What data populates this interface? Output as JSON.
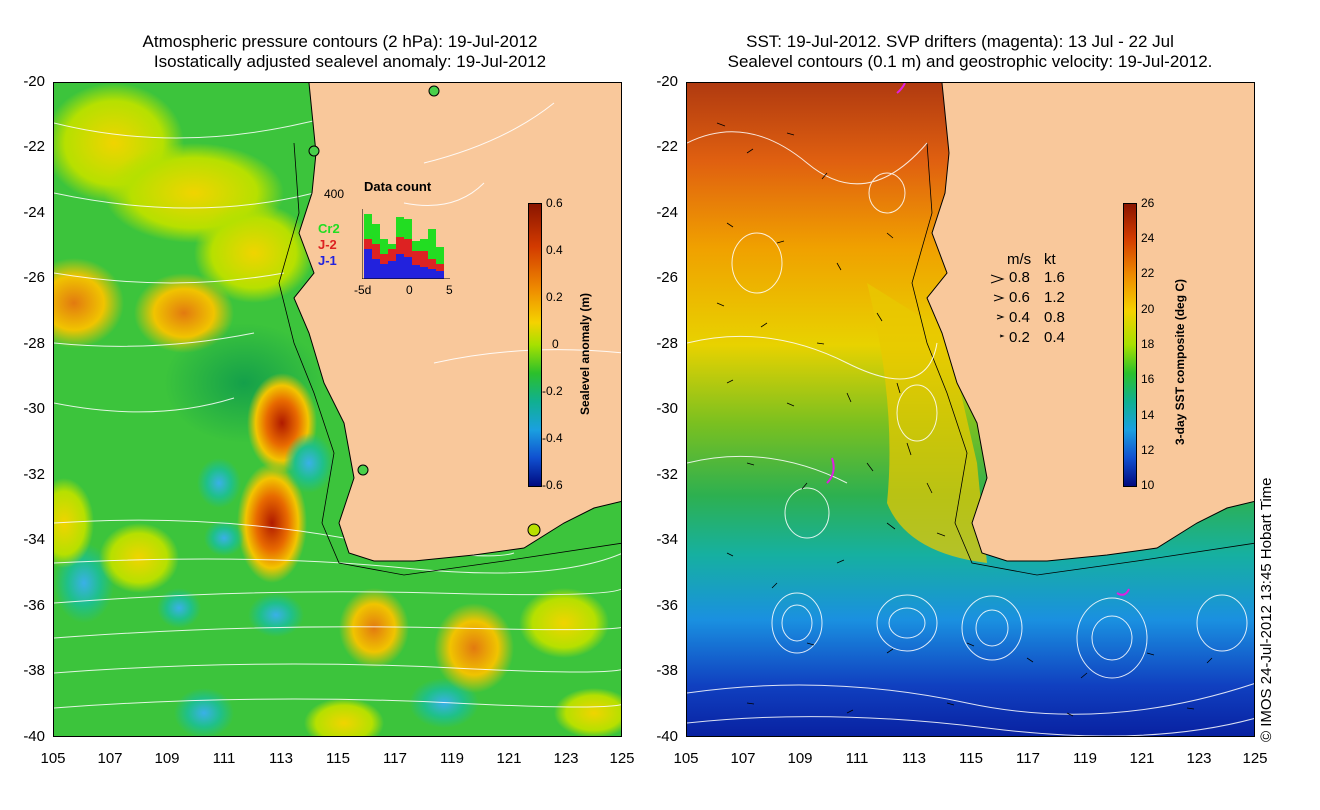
{
  "left_panel": {
    "title_line1": "Atmospheric pressure contours (2 hPa): 19-Jul-2012",
    "title_line2": "Isostatically adjusted sealevel anomaly: 19-Jul-2012",
    "lat_ticks": [
      "-20",
      "-22",
      "-24",
      "-26",
      "-28",
      "-30",
      "-32",
      "-34",
      "-36",
      "-38",
      "-40"
    ],
    "lon_ticks": [
      "105",
      "107",
      "109",
      "111",
      "113",
      "115",
      "117",
      "119",
      "121",
      "123",
      "125"
    ],
    "colorbar": {
      "title": "Sealevel anomaly (m)",
      "ticks": [
        "0.6",
        "0.4",
        "0.2",
        "0",
        "-0.2",
        "-0.4",
        "-0.6"
      ]
    },
    "inset": {
      "title": "Data count",
      "ymax_label": "400",
      "x_labels": [
        "-5d",
        "0",
        "5"
      ],
      "legend": [
        {
          "label": "Cr2",
          "color": "#22dd22"
        },
        {
          "label": "J-2",
          "color": "#dd2222"
        },
        {
          "label": "J-1",
          "color": "#2222dd"
        }
      ]
    }
  },
  "right_panel": {
    "title_line1": "SST: 19-Jul-2012. SVP drifters (magenta): 13 Jul - 22 Jul",
    "title_line2": "Sealevel contours (0.1 m) and geostrophic velocity: 19-Jul-2012.",
    "lat_ticks": [
      "-20",
      "-22",
      "-24",
      "-26",
      "-28",
      "-30",
      "-32",
      "-34",
      "-36",
      "-38",
      "-40"
    ],
    "lon_ticks": [
      "105",
      "107",
      "109",
      "111",
      "113",
      "115",
      "117",
      "119",
      "121",
      "123",
      "125"
    ],
    "colorbar": {
      "title": "3-day SST composite (deg C)",
      "ticks": [
        "26",
        "24",
        "22",
        "20",
        "18",
        "16",
        "14",
        "12",
        "10"
      ]
    },
    "velocity_legend": {
      "header_ms": "m/s",
      "header_kt": "kt",
      "rows": [
        {
          "ms": "0.8",
          "kt": "1.6"
        },
        {
          "ms": "0.6",
          "kt": "1.2"
        },
        {
          "ms": "0.4",
          "kt": "0.8"
        },
        {
          "ms": "0.2",
          "kt": "0.4"
        }
      ]
    }
  },
  "copyright": "© IMOS 24-Jul-2012 13:45 Hobart Time",
  "colors": {
    "land": "#f9c89b",
    "ocean_green": "#2bbf2b"
  }
}
